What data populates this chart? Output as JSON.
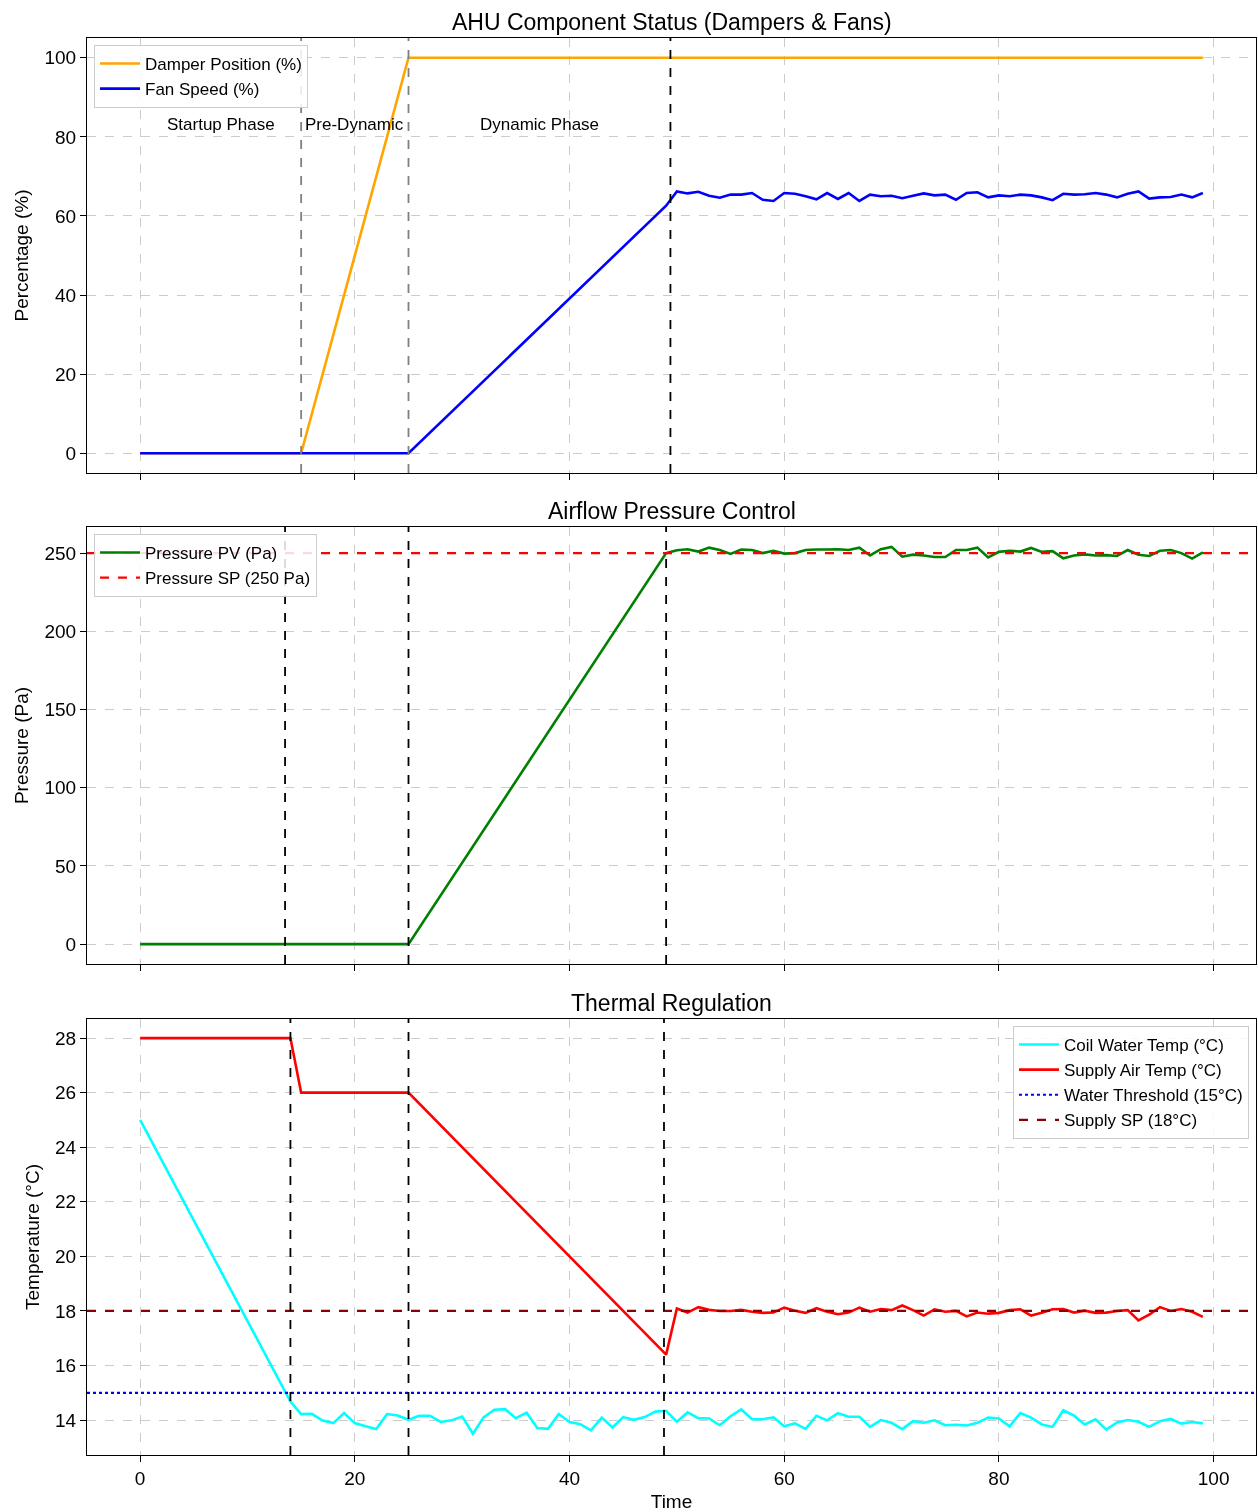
{
  "chart_data": [
    {
      "type": "line",
      "title": "AHU Component Status (Dampers & Fans)",
      "ylabel": "Percentage (%)",
      "xlim": [
        -4.95,
        103.95
      ],
      "xticks": [
        0,
        20,
        40,
        60,
        80,
        100
      ],
      "ylim": [
        -5,
        105
      ],
      "yticks": [
        0,
        20,
        40,
        60,
        80,
        100
      ],
      "grid": true,
      "legend": "top left",
      "tick_labels": "y",
      "marker": "none",
      "series": [
        {
          "name": "Damper Position (%)",
          "color": "#ffa500",
          "x": [
            0,
            15,
            25,
            99
          ],
          "values": [
            0,
            0,
            100,
            100
          ]
        },
        {
          "name": "Fan Speed (%)",
          "color": "#0000ff",
          "x": [
            0,
            25,
            49,
            50,
            51,
            52,
            53,
            54,
            55,
            56,
            57,
            58,
            59,
            60,
            61,
            62,
            63,
            64,
            65,
            66,
            67,
            68,
            69,
            70,
            71,
            72,
            73,
            74,
            75,
            76,
            77,
            78,
            79,
            80,
            81,
            82,
            83,
            84,
            85,
            86,
            87,
            88,
            89,
            90,
            91,
            92,
            93,
            94,
            95,
            96,
            97,
            98,
            99
          ],
          "values": [
            0,
            0,
            62.6,
            66.2,
            65.7,
            66.1,
            65.1,
            64.6,
            65.4,
            65.4,
            65.8,
            64.1,
            63.8,
            65.8,
            65.6,
            65.0,
            64.2,
            65.8,
            64.3,
            65.8,
            63.8,
            65.4,
            65.0,
            65.1,
            64.5,
            65.1,
            65.7,
            65.2,
            65.4,
            64.1,
            65.8,
            66.0,
            64.7,
            65.2,
            65.0,
            65.4,
            65.2,
            64.7,
            64.0,
            65.6,
            65.4,
            65.5,
            65.8,
            65.4,
            64.7,
            65.6,
            66.2,
            64.4,
            64.7,
            64.8,
            65.4,
            64.7,
            65.8
          ]
        }
      ],
      "ref_lines": [
        {
          "axis": "x",
          "value": 15,
          "color": "#808080",
          "line_style": "dashed"
        },
        {
          "axis": "x",
          "value": 25,
          "color": "#808080",
          "line_style": "dashed"
        },
        {
          "axis": "x",
          "value": 49.4,
          "color": "#000000",
          "line_style": "dashed"
        }
      ],
      "annotations": [
        "Startup Phase",
        "Pre-Dynamic",
        "Dynamic Phase"
      ]
    },
    {
      "type": "line",
      "title": "Airflow Pressure Control",
      "ylabel": "Pressure (Pa)",
      "xlim": [
        -4.95,
        103.95
      ],
      "xticks": [
        0,
        20,
        40,
        60,
        80,
        100
      ],
      "ylim": [
        -12.7,
        266.7
      ],
      "yticks": [
        0,
        50,
        100,
        150,
        200,
        250
      ],
      "grid": true,
      "legend": "top left",
      "tick_labels": "y",
      "marker": "none",
      "series": [
        {
          "name": "Pressure PV (Pa)",
          "color": "#008000",
          "x": [
            0,
            25,
            49,
            50,
            51,
            52,
            53,
            54,
            55,
            56,
            57,
            58,
            59,
            60,
            61,
            62,
            63,
            64,
            65,
            66,
            67,
            68,
            69,
            70,
            71,
            72,
            73,
            74,
            75,
            76,
            77,
            78,
            79,
            80,
            81,
            82,
            83,
            84,
            85,
            86,
            87,
            88,
            89,
            90,
            91,
            92,
            93,
            94,
            95,
            96,
            97,
            98,
            99
          ],
          "values": [
            0,
            0,
            250,
            251.8,
            252.5,
            251.0,
            253.5,
            252.0,
            249.5,
            252.3,
            252.0,
            250.0,
            251.5,
            249.7,
            250.0,
            252.0,
            252.3,
            252.3,
            252.5,
            252.0,
            253.5,
            248.5,
            252.5,
            254.0,
            247.7,
            249.0,
            248.5,
            247.5,
            247.5,
            252.0,
            252.0,
            253.5,
            247.2,
            250.8,
            251.5,
            251.0,
            253.3,
            250.8,
            251.3,
            246.7,
            248.5,
            249.2,
            248.5,
            248.7,
            248.2,
            252.0,
            249.0,
            248.2,
            251.5,
            252.0,
            250.0,
            246.5,
            250.5
          ]
        }
      ],
      "ref_lines": [
        {
          "axis": "y",
          "value": 250,
          "label": "Pressure SP (250 Pa)",
          "color": "#ff0000",
          "line_style": "dashed"
        },
        {
          "axis": "x",
          "value": 13.5,
          "color": "#000000",
          "line_style": "dashed"
        },
        {
          "axis": "x",
          "value": 25,
          "color": "#000000",
          "line_style": "dashed"
        },
        {
          "axis": "x",
          "value": 49,
          "color": "#000000",
          "line_style": "dashed"
        }
      ]
    },
    {
      "type": "line",
      "title": "Thermal Regulation",
      "xlabel": "Time",
      "ylabel": "Temperature (°C)",
      "xlim": [
        -4.95,
        103.95
      ],
      "xticks": [
        0,
        20,
        40,
        60,
        80,
        100
      ],
      "ylim": [
        12.72,
        28.7
      ],
      "yticks": [
        14,
        16,
        18,
        20,
        22,
        24,
        26,
        28
      ],
      "grid": true,
      "legend": "top right",
      "marker": "none",
      "series": [
        {
          "name": "Coil Water Temp (°C)",
          "color": "#00ffff",
          "x": [
            0,
            14,
            15,
            16,
            17,
            18,
            19,
            20,
            21,
            22,
            23,
            24,
            25,
            26,
            27,
            28,
            29,
            30,
            31,
            32,
            33,
            34,
            35,
            36,
            37,
            38,
            39,
            40,
            41,
            42,
            43,
            44,
            45,
            46,
            47,
            48,
            49,
            50,
            51,
            52,
            53,
            54,
            55,
            56,
            57,
            58,
            59,
            60,
            61,
            62,
            63,
            64,
            65,
            66,
            67,
            68,
            69,
            70,
            71,
            72,
            73,
            74,
            75,
            76,
            77,
            78,
            79,
            80,
            81,
            82,
            83,
            84,
            85,
            86,
            87,
            88,
            89,
            90,
            91,
            92,
            93,
            94,
            95,
            96,
            97,
            98,
            99
          ],
          "values": [
            25,
            14.68,
            14.22,
            14.23,
            13.98,
            13.89,
            14.26,
            13.89,
            13.77,
            13.67,
            14.22,
            14.17,
            14.01,
            14.16,
            14.16,
            13.93,
            13.99,
            14.13,
            13.5,
            14.1,
            14.38,
            14.4,
            14.07,
            14.27,
            13.71,
            13.68,
            14.22,
            13.93,
            13.85,
            13.62,
            14.09,
            13.73,
            14.11,
            14.01,
            14.11,
            14.31,
            14.34,
            13.94,
            14.28,
            14.07,
            14.06,
            13.81,
            14.14,
            14.39,
            14.03,
            14.03,
            14.1,
            13.77,
            13.88,
            13.68,
            14.16,
            13.99,
            14.25,
            14.12,
            14.12,
            13.75,
            14.0,
            13.9,
            13.67,
            13.96,
            13.9,
            13.99,
            13.81,
            13.83,
            13.8,
            13.9,
            14.09,
            14.06,
            13.77,
            14.26,
            14.09,
            13.84,
            13.75,
            14.36,
            14.16,
            13.84,
            14.03,
            13.65,
            13.91,
            14.0,
            13.94,
            13.75,
            13.96,
            14.04,
            13.87,
            13.93,
            13.88
          ]
        },
        {
          "name": "Supply Air Temp (°C)",
          "color": "#ff0000",
          "x": [
            0,
            14,
            15,
            25,
            49,
            50,
            51,
            52,
            53,
            54,
            55,
            56,
            57,
            58,
            59,
            60,
            61,
            62,
            63,
            64,
            65,
            66,
            67,
            68,
            69,
            70,
            71,
            72,
            73,
            74,
            75,
            76,
            77,
            78,
            79,
            80,
            81,
            82,
            83,
            84,
            85,
            86,
            87,
            88,
            89,
            90,
            91,
            92,
            93,
            94,
            95,
            96,
            97,
            98,
            99
          ],
          "values": [
            28,
            28,
            26,
            26,
            16.4,
            18.09,
            17.94,
            18.14,
            18.04,
            18.0,
            18.0,
            18.04,
            17.97,
            17.93,
            17.94,
            18.12,
            18.01,
            17.93,
            18.1,
            17.97,
            17.88,
            17.94,
            18.12,
            17.97,
            18.07,
            18.03,
            18.2,
            18.03,
            17.83,
            18.06,
            17.97,
            18.0,
            17.8,
            17.94,
            17.9,
            17.93,
            18.03,
            18.06,
            17.83,
            17.93,
            18.06,
            18.07,
            17.94,
            18.01,
            17.93,
            17.94,
            18.0,
            18.03,
            17.65,
            17.86,
            18.14,
            18.0,
            18.07,
            17.97,
            17.78
          ]
        }
      ],
      "ref_lines": [
        {
          "axis": "y",
          "value": 15,
          "label": "Water Threshold (15°C)",
          "color": "#0000ff",
          "line_style": "dotted"
        },
        {
          "axis": "y",
          "value": 18,
          "label": "Supply SP (18°C)",
          "color": "#8b0000",
          "line_style": "dashed"
        },
        {
          "axis": "x",
          "value": 14,
          "color": "#000000",
          "line_style": "dashed"
        },
        {
          "axis": "x",
          "value": 25,
          "color": "#000000",
          "line_style": "dashed"
        },
        {
          "axis": "x",
          "value": 48.8,
          "color": "#000000",
          "line_style": "dashed"
        }
      ]
    }
  ]
}
